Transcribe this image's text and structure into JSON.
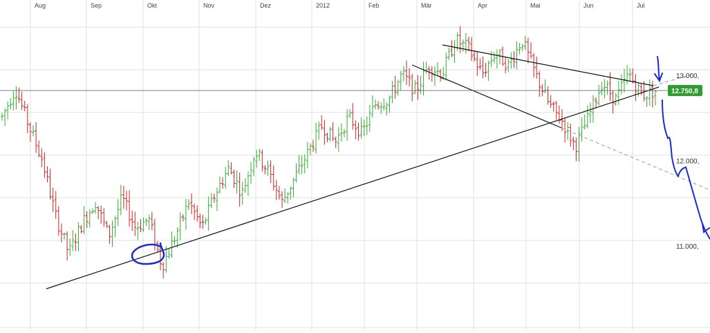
{
  "chart_data": {
    "type": "ohlc",
    "x_labels": [
      "Aug",
      "Sep",
      "Okt",
      "Nov",
      "Dez",
      "2012",
      "Feb",
      "Mär",
      "Apr",
      "Mai",
      "Jun",
      "Jul"
    ],
    "y_ticks": [
      {
        "value": 13000,
        "label": "13.000,"
      },
      {
        "value": 12000,
        "label": "12.000,"
      },
      {
        "value": 11000,
        "label": "11.000,"
      }
    ],
    "ylim": [
      10000,
      13900
    ],
    "grid": true,
    "current_price": {
      "value": 12750.8,
      "label": "12.750,8"
    },
    "colors": {
      "up": "#33aa33",
      "down": "#cc2222",
      "grid": "#e2e2e2",
      "trend": "#111111",
      "projection": "#999999",
      "annotation": "#1a2bcc",
      "badge": "#2e9e2e"
    },
    "series": [
      {
        "t": 0,
        "v": 12450
      },
      {
        "t": 1,
        "v": 12780
      },
      {
        "t": 2,
        "v": 12350
      },
      {
        "t": 3,
        "v": 11950
      },
      {
        "t": 4,
        "v": 11300
      },
      {
        "t": 5,
        "v": 10850
      },
      {
        "t": 6,
        "v": 11200
      },
      {
        "t": 7,
        "v": 11450
      },
      {
        "t": 8,
        "v": 11050
      },
      {
        "t": 9,
        "v": 11500
      },
      {
        "t": 10,
        "v": 11150
      },
      {
        "t": 11,
        "v": 11250
      },
      {
        "t": 12,
        "v": 10700
      },
      {
        "t": 13,
        "v": 11050
      },
      {
        "t": 14,
        "v": 11450
      },
      {
        "t": 15,
        "v": 11150
      },
      {
        "t": 16,
        "v": 11550
      },
      {
        "t": 17,
        "v": 11850
      },
      {
        "t": 18,
        "v": 11550
      },
      {
        "t": 19,
        "v": 12050
      },
      {
        "t": 20,
        "v": 11800
      },
      {
        "t": 21,
        "v": 11450
      },
      {
        "t": 22,
        "v": 11750
      },
      {
        "t": 23,
        "v": 12050
      },
      {
        "t": 24,
        "v": 12350
      },
      {
        "t": 25,
        "v": 12150
      },
      {
        "t": 26,
        "v": 12450
      },
      {
        "t": 27,
        "v": 12250
      },
      {
        "t": 28,
        "v": 12600
      },
      {
        "t": 29,
        "v": 12650
      },
      {
        "t": 30,
        "v": 12950
      },
      {
        "t": 31,
        "v": 12750
      },
      {
        "t": 32,
        "v": 13050
      },
      {
        "t": 33,
        "v": 12950
      },
      {
        "t": 34,
        "v": 13350
      },
      {
        "t": 35,
        "v": 13250
      },
      {
        "t": 36,
        "v": 12950
      },
      {
        "t": 37,
        "v": 13200
      },
      {
        "t": 38,
        "v": 13050
      },
      {
        "t": 39,
        "v": 13350
      },
      {
        "t": 40,
        "v": 12950
      },
      {
        "t": 41,
        "v": 12600
      },
      {
        "t": 42,
        "v": 12400
      },
      {
        "t": 43,
        "v": 12100
      },
      {
        "t": 44,
        "v": 12450
      },
      {
        "t": 45,
        "v": 12850
      },
      {
        "t": 46,
        "v": 12650
      },
      {
        "t": 47,
        "v": 12950
      },
      {
        "t": 48,
        "v": 12700
      },
      {
        "t": 49,
        "v": 12750
      }
    ]
  }
}
